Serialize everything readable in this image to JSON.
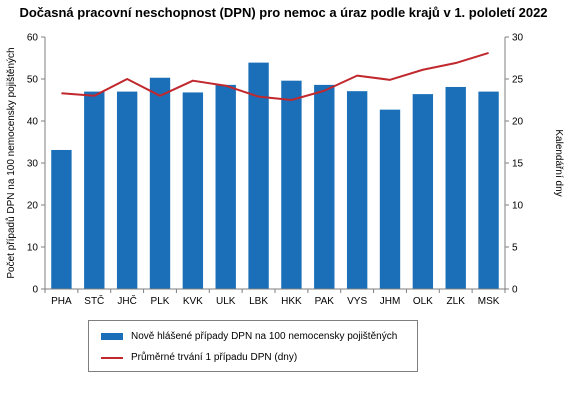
{
  "chart_data": {
    "type": "bar",
    "title": "Dočasná pracovní neschopnost (DPN) pro nemoc a úraz podle krajů v 1. pololetí 2022",
    "categories": [
      "PHA",
      "STČ",
      "JHČ",
      "PLK",
      "KVK",
      "ULK",
      "LBK",
      "HKK",
      "PAK",
      "VYS",
      "JHM",
      "OLK",
      "ZLK",
      "MSK"
    ],
    "series": [
      {
        "name": "Nově hlášené případy DPN na 100 nemocensky pojištěných",
        "type": "bar",
        "axis": "left",
        "color": "#1a6fb8",
        "values": [
          33.1,
          47.0,
          47.0,
          50.3,
          46.8,
          48.6,
          53.9,
          49.6,
          48.6,
          47.1,
          42.7,
          46.4,
          48.1,
          47.0
        ]
      },
      {
        "name": "Průměrné trvání 1 případu DPN (dny)",
        "type": "line",
        "axis": "right",
        "color": "#c0282d",
        "values": [
          23.3,
          23.0,
          25.0,
          23.0,
          24.8,
          24.2,
          22.9,
          22.5,
          23.6,
          25.4,
          24.9,
          26.1,
          26.9,
          28.1
        ]
      }
    ],
    "ylabel": "Počet případů DPN na 100 nemocensky pojištěných",
    "y2label": "Kalendářní dny",
    "ylim": [
      0,
      60
    ],
    "y2lim": [
      0,
      30
    ],
    "yticks": [
      0,
      10,
      20,
      30,
      40,
      50,
      60
    ],
    "y2ticks": [
      0,
      5,
      10,
      15,
      20,
      25,
      30
    ],
    "grid": false,
    "legend": "bottom"
  }
}
